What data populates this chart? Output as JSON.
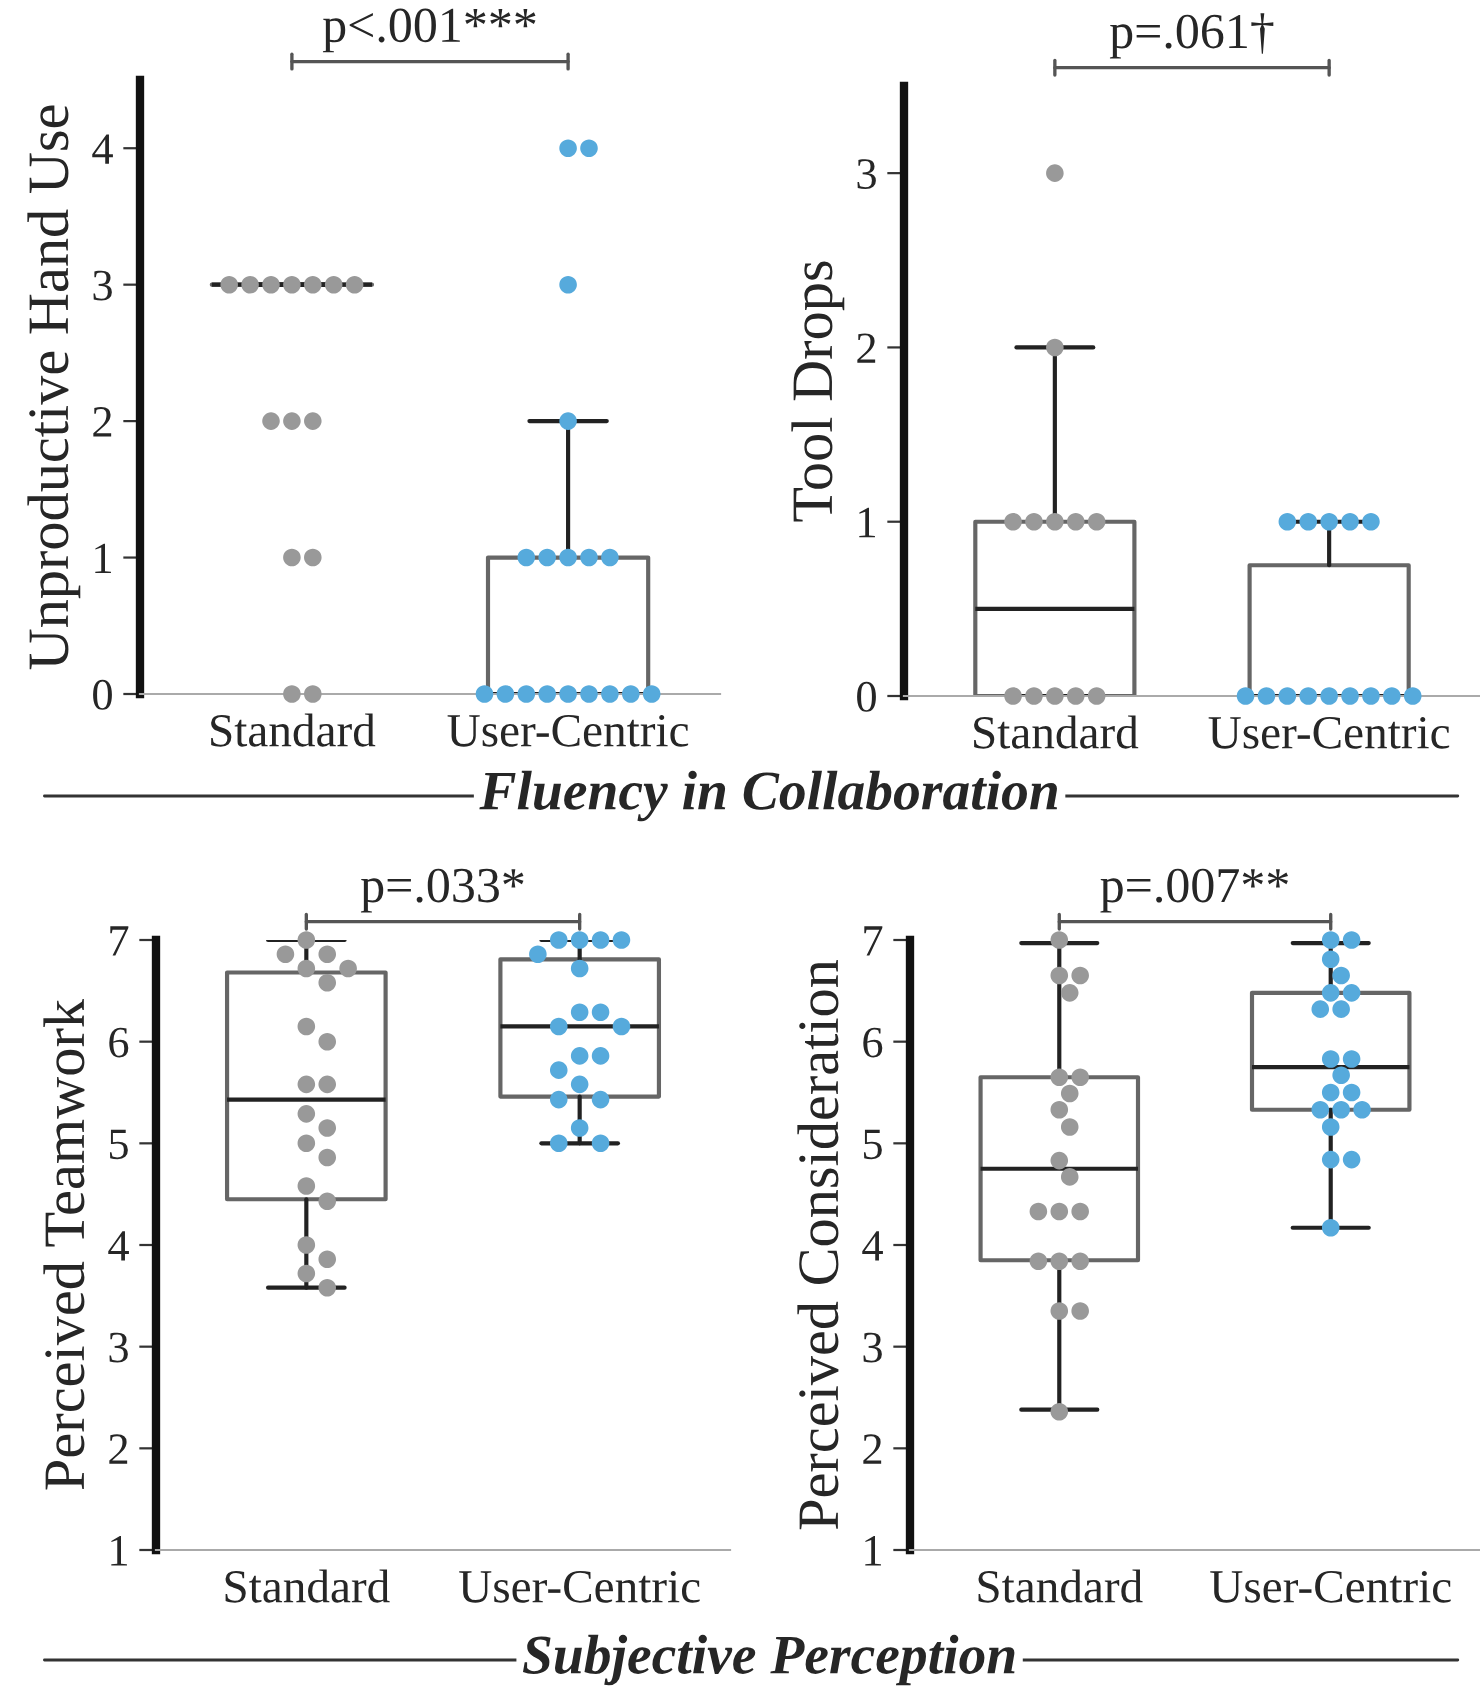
{
  "chart_data": [
    {
      "type": "box",
      "ylabel": "Unproductive Hand Use",
      "categories": [
        "Standard",
        "User-Centric"
      ],
      "ylim": [
        0,
        4.5
      ],
      "yticks": [
        0,
        1,
        2,
        3,
        4
      ],
      "grid": false,
      "legend": false,
      "annotations": [
        "p<.001***",
        "Fluency in Collaboration"
      ],
      "boxes": [
        {
          "low": 3,
          "q1": 3,
          "median": 3,
          "q3": 3,
          "high": 3
        },
        {
          "low": 0,
          "q1": 0,
          "median": 0,
          "q3": 1,
          "high": 2
        }
      ],
      "series": [
        {
          "type": "scatter",
          "color": "#999999",
          "x": [
            "Standard",
            "Standard",
            "Standard",
            "Standard",
            "Standard",
            "Standard",
            "Standard",
            "Standard",
            "Standard",
            "Standard",
            "Standard",
            "Standard",
            "Standard",
            "Standard"
          ],
          "values": [
            3,
            3,
            3,
            3,
            3,
            3,
            3,
            2,
            2,
            2,
            1,
            1,
            0,
            0
          ]
        },
        {
          "type": "scatter",
          "color": "#56aadc",
          "x": [
            "User-Centric",
            "User-Centric",
            "User-Centric",
            "User-Centric",
            "User-Centric",
            "User-Centric",
            "User-Centric",
            "User-Centric",
            "User-Centric",
            "User-Centric",
            "User-Centric",
            "User-Centric",
            "User-Centric",
            "User-Centric",
            "User-Centric",
            "User-Centric",
            "User-Centric",
            "User-Centric"
          ],
          "values": [
            4,
            4,
            3,
            2,
            1,
            1,
            1,
            1,
            1,
            0,
            0,
            0,
            0,
            0,
            0,
            0,
            0,
            0
          ]
        }
      ]
    },
    {
      "type": "box",
      "ylabel": "Tool Drops",
      "categories": [
        "Standard",
        "User-Centric"
      ],
      "ylim": [
        0,
        3.5
      ],
      "yticks": [
        0,
        1,
        2,
        3
      ],
      "grid": false,
      "legend": false,
      "annotations": [
        "p=.061†"
      ],
      "boxes": [
        {
          "low": 0,
          "q1": 0,
          "median": 0.5,
          "q3": 1,
          "high": 2
        },
        {
          "low": 0,
          "q1": 0,
          "median": 0,
          "q3": 0.75,
          "high": 1
        }
      ],
      "series": [
        {
          "type": "scatter",
          "color": "#999999",
          "x": [
            "Standard",
            "Standard",
            "Standard",
            "Standard",
            "Standard",
            "Standard",
            "Standard",
            "Standard",
            "Standard",
            "Standard",
            "Standard",
            "Standard"
          ],
          "values": [
            3,
            2,
            1,
            1,
            1,
            1,
            1,
            0,
            0,
            0,
            0,
            0
          ]
        },
        {
          "type": "scatter",
          "color": "#56aadc",
          "x": [
            "User-Centric",
            "User-Centric",
            "User-Centric",
            "User-Centric",
            "User-Centric",
            "User-Centric",
            "User-Centric",
            "User-Centric",
            "User-Centric",
            "User-Centric",
            "User-Centric",
            "User-Centric",
            "User-Centric",
            "User-Centric"
          ],
          "values": [
            1,
            1,
            1,
            1,
            1,
            0,
            0,
            0,
            0,
            0,
            0,
            0,
            0,
            0
          ]
        }
      ]
    },
    {
      "type": "box",
      "ylabel": "Perceived Teamwork",
      "categories": [
        "Standard",
        "User-Centric"
      ],
      "ylim": [
        1,
        7
      ],
      "yticks": [
        1,
        2,
        3,
        4,
        5,
        6,
        7
      ],
      "grid": false,
      "legend": false,
      "annotations": [
        "p=.033*",
        "Subjective Perception"
      ],
      "boxes": [
        {
          "low": 3.58,
          "q1": 4.45,
          "median": 5.43,
          "q3": 6.68,
          "high": 7
        },
        {
          "low": 5,
          "q1": 5.46,
          "median": 6.15,
          "q3": 6.81,
          "high": 7
        }
      ],
      "series": [
        {
          "type": "scatter",
          "color": "#999999",
          "x": [
            "Standard",
            "Standard",
            "Standard",
            "Standard",
            "Standard",
            "Standard",
            "Standard",
            "Standard",
            "Standard",
            "Standard",
            "Standard",
            "Standard",
            "Standard",
            "Standard",
            "Standard",
            "Standard",
            "Standard",
            "Standard",
            "Standard",
            "Standard"
          ],
          "values": [
            7,
            6.86,
            6.86,
            6.72,
            6.72,
            6.58,
            6.15,
            6.0,
            5.58,
            5.58,
            5.29,
            5.15,
            5.0,
            4.86,
            4.58,
            4.43,
            4.0,
            3.86,
            3.72,
            3.58
          ]
        },
        {
          "type": "scatter",
          "color": "#56aadc",
          "x": [
            "User-Centric",
            "User-Centric",
            "User-Centric",
            "User-Centric",
            "User-Centric",
            "User-Centric",
            "User-Centric",
            "User-Centric",
            "User-Centric",
            "User-Centric",
            "User-Centric",
            "User-Centric",
            "User-Centric",
            "User-Centric",
            "User-Centric",
            "User-Centric",
            "User-Centric",
            "User-Centric",
            "User-Centric"
          ],
          "values": [
            7,
            7,
            7,
            7,
            6.86,
            6.72,
            6.29,
            6.29,
            6.15,
            6.15,
            5.86,
            5.86,
            5.72,
            5.58,
            5.43,
            5.43,
            5.15,
            5.0,
            5.0
          ]
        }
      ]
    },
    {
      "type": "box",
      "ylabel": "Perceived Consideration",
      "categories": [
        "Standard",
        "User-Centric"
      ],
      "ylim": [
        1,
        7
      ],
      "yticks": [
        1,
        2,
        3,
        4,
        5,
        6,
        7
      ],
      "grid": false,
      "legend": false,
      "annotations": [
        "p=.007**"
      ],
      "boxes": [
        {
          "low": 2.38,
          "q1": 3.85,
          "median": 4.75,
          "q3": 5.65,
          "high": 6.97
        },
        {
          "low": 4.17,
          "q1": 5.33,
          "median": 5.75,
          "q3": 6.48,
          "high": 6.97
        }
      ],
      "series": [
        {
          "type": "scatter",
          "color": "#999999",
          "x": [
            "Standard",
            "Standard",
            "Standard",
            "Standard",
            "Standard",
            "Standard",
            "Standard",
            "Standard",
            "Standard",
            "Standard",
            "Standard",
            "Standard",
            "Standard",
            "Standard",
            "Standard",
            "Standard",
            "Standard",
            "Standard",
            "Standard",
            "Standard"
          ],
          "values": [
            7,
            6.65,
            6.65,
            6.48,
            5.65,
            5.65,
            5.49,
            5.33,
            5.16,
            4.83,
            4.67,
            4.33,
            4.33,
            4.33,
            3.84,
            3.84,
            3.84,
            3.35,
            3.35,
            2.36
          ]
        },
        {
          "type": "scatter",
          "color": "#56aadc",
          "x": [
            "User-Centric",
            "User-Centric",
            "User-Centric",
            "User-Centric",
            "User-Centric",
            "User-Centric",
            "User-Centric",
            "User-Centric",
            "User-Centric",
            "User-Centric",
            "User-Centric",
            "User-Centric",
            "User-Centric",
            "User-Centric",
            "User-Centric",
            "User-Centric",
            "User-Centric",
            "User-Centric",
            "User-Centric",
            "User-Centric"
          ],
          "values": [
            7,
            7,
            6.81,
            6.65,
            6.48,
            6.48,
            6.32,
            6.32,
            5.83,
            5.83,
            5.67,
            5.5,
            5.5,
            5.33,
            5.33,
            5.33,
            5.16,
            4.84,
            4.84,
            4.17
          ]
        }
      ]
    }
  ]
}
